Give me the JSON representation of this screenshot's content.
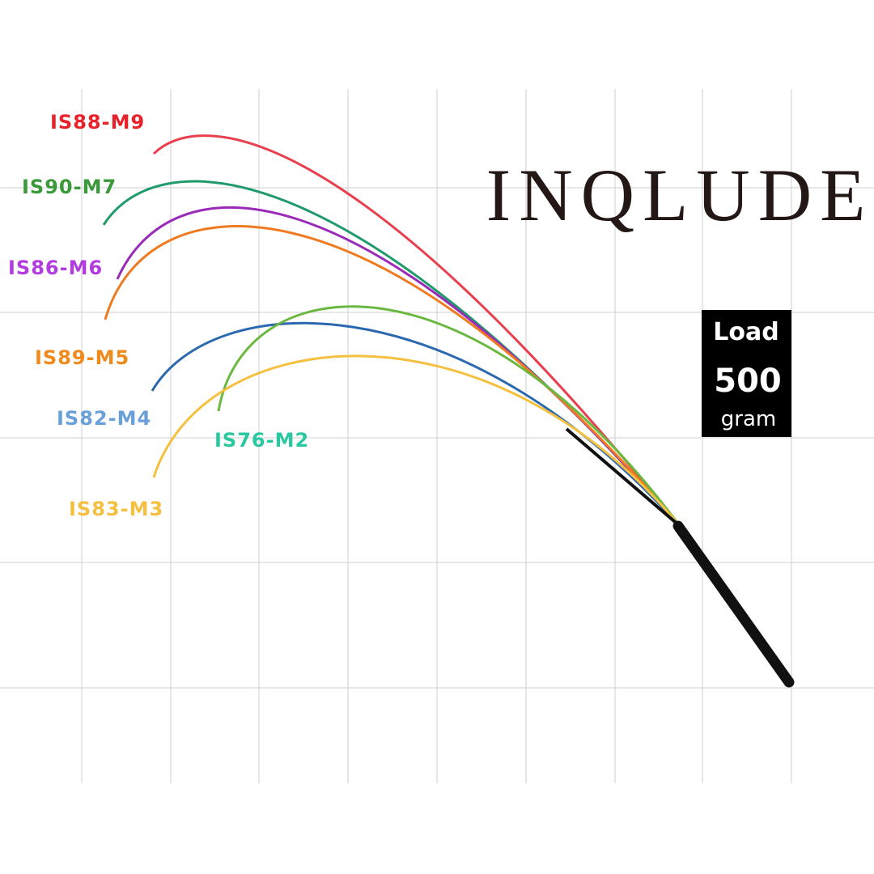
{
  "title": "INQLUDE",
  "load_box": {
    "label": "Load",
    "value": "500",
    "unit": "gram"
  },
  "rods": [
    {
      "label": "IS88-M9",
      "color": "#e8222a",
      "line_color": "#e8404f"
    },
    {
      "label": "IS90-M7",
      "color": "#3a9a3a",
      "line_color": "#1f9a6a"
    },
    {
      "label": "IS86-M6",
      "color": "#b33ce0",
      "line_color": "#9a2ab8"
    },
    {
      "label": "IS89-M5",
      "color": "#f08a1c",
      "line_color": "#f07a20"
    },
    {
      "label": "IS82-M4",
      "color": "#6aa0d8",
      "line_color": "#2a68b0"
    },
    {
      "label": "IS76-M2",
      "color": "#2ac8a0",
      "line_color": "#6ab840"
    },
    {
      "label": "IS83-M3",
      "color": "#f5c040",
      "line_color": "#f5c040"
    }
  ]
}
